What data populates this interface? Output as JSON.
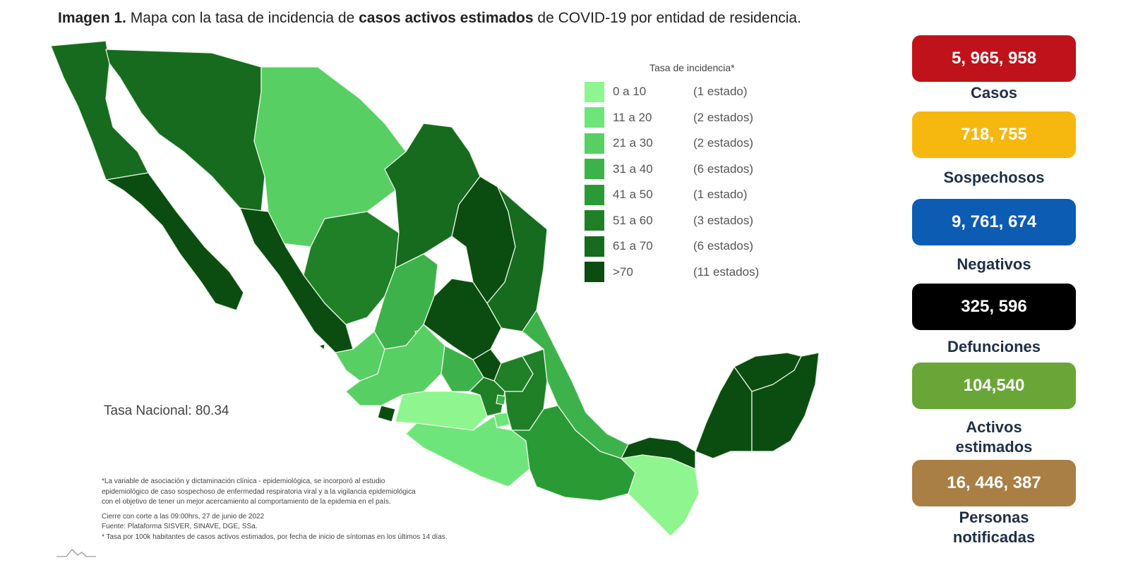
{
  "title": {
    "prefix": "Imagen 1.",
    "part1": " Mapa con la tasa de incidencia de ",
    "bold": "casos activos estimados",
    "part2": " de COVID-19 por entidad de residencia."
  },
  "legend": {
    "title": "Tasa de incidencia*",
    "items": [
      {
        "range": "0 a  10",
        "count": "(1 estado)",
        "color": "#8ef58f"
      },
      {
        "range": "11 a  20",
        "count": "(2 estados)",
        "color": "#6ee57a"
      },
      {
        "range": "21 a  30",
        "count": "(2 estados)",
        "color": "#57cf63"
      },
      {
        "range": "31 a  40",
        "count": "(6 estados)",
        "color": "#3db24a"
      },
      {
        "range": "41 a  50",
        "count": "(1 estado)",
        "color": "#2a9a35"
      },
      {
        "range": "51 a  60",
        "count": "(3 estados)",
        "color": "#1f8027"
      },
      {
        "range": "61 a  70",
        "count": "(6 estados)",
        "color": "#166b1e"
      },
      {
        "range": ">70",
        "count": "(11 estados)",
        "color": "#0b4d10"
      }
    ]
  },
  "tasa_nacional": "Tasa Nacional: 80.34",
  "footnotes": {
    "line1": "*La variable de asociación y dictaminación clínica - epidemiológica, se incorporó al estudio",
    "line2": "epidemiológico de caso sospechoso de enfermedad respiratoria viral y a la vigilancia epidemiológica",
    "line3": "con el objetivo de tener un mejor acercamiento al comportamiento de la epidemia en el país.",
    "line4": "Cierre con corte a las 09:00hrs, 27 de junio de 2022",
    "line5": "Fuente: Plataforma SISVER, SINAVE, DGE, SSa.",
    "line6": "* Tasa por 100k habitantes de casos activos estimados, por fecha de inicio de síntomas en los últimos 14 días."
  },
  "stats": [
    {
      "value": "5, 965, 958",
      "label": "Casos",
      "color": "#c0121a"
    },
    {
      "value": "718, 755",
      "label": "Sospechosos",
      "color": "#f6b80f"
    },
    {
      "value": "9, 761, 674",
      "label": "Negativos",
      "color": "#0d5cb3"
    },
    {
      "value": "325, 596",
      "label": "Defunciones",
      "color": "#000000"
    },
    {
      "value": "104,540",
      "label": "Activos estimados",
      "color": "#6aa637"
    },
    {
      "value": "16, 446, 387",
      "label": "Personas notificadas",
      "color": "#a97f45"
    }
  ]
}
